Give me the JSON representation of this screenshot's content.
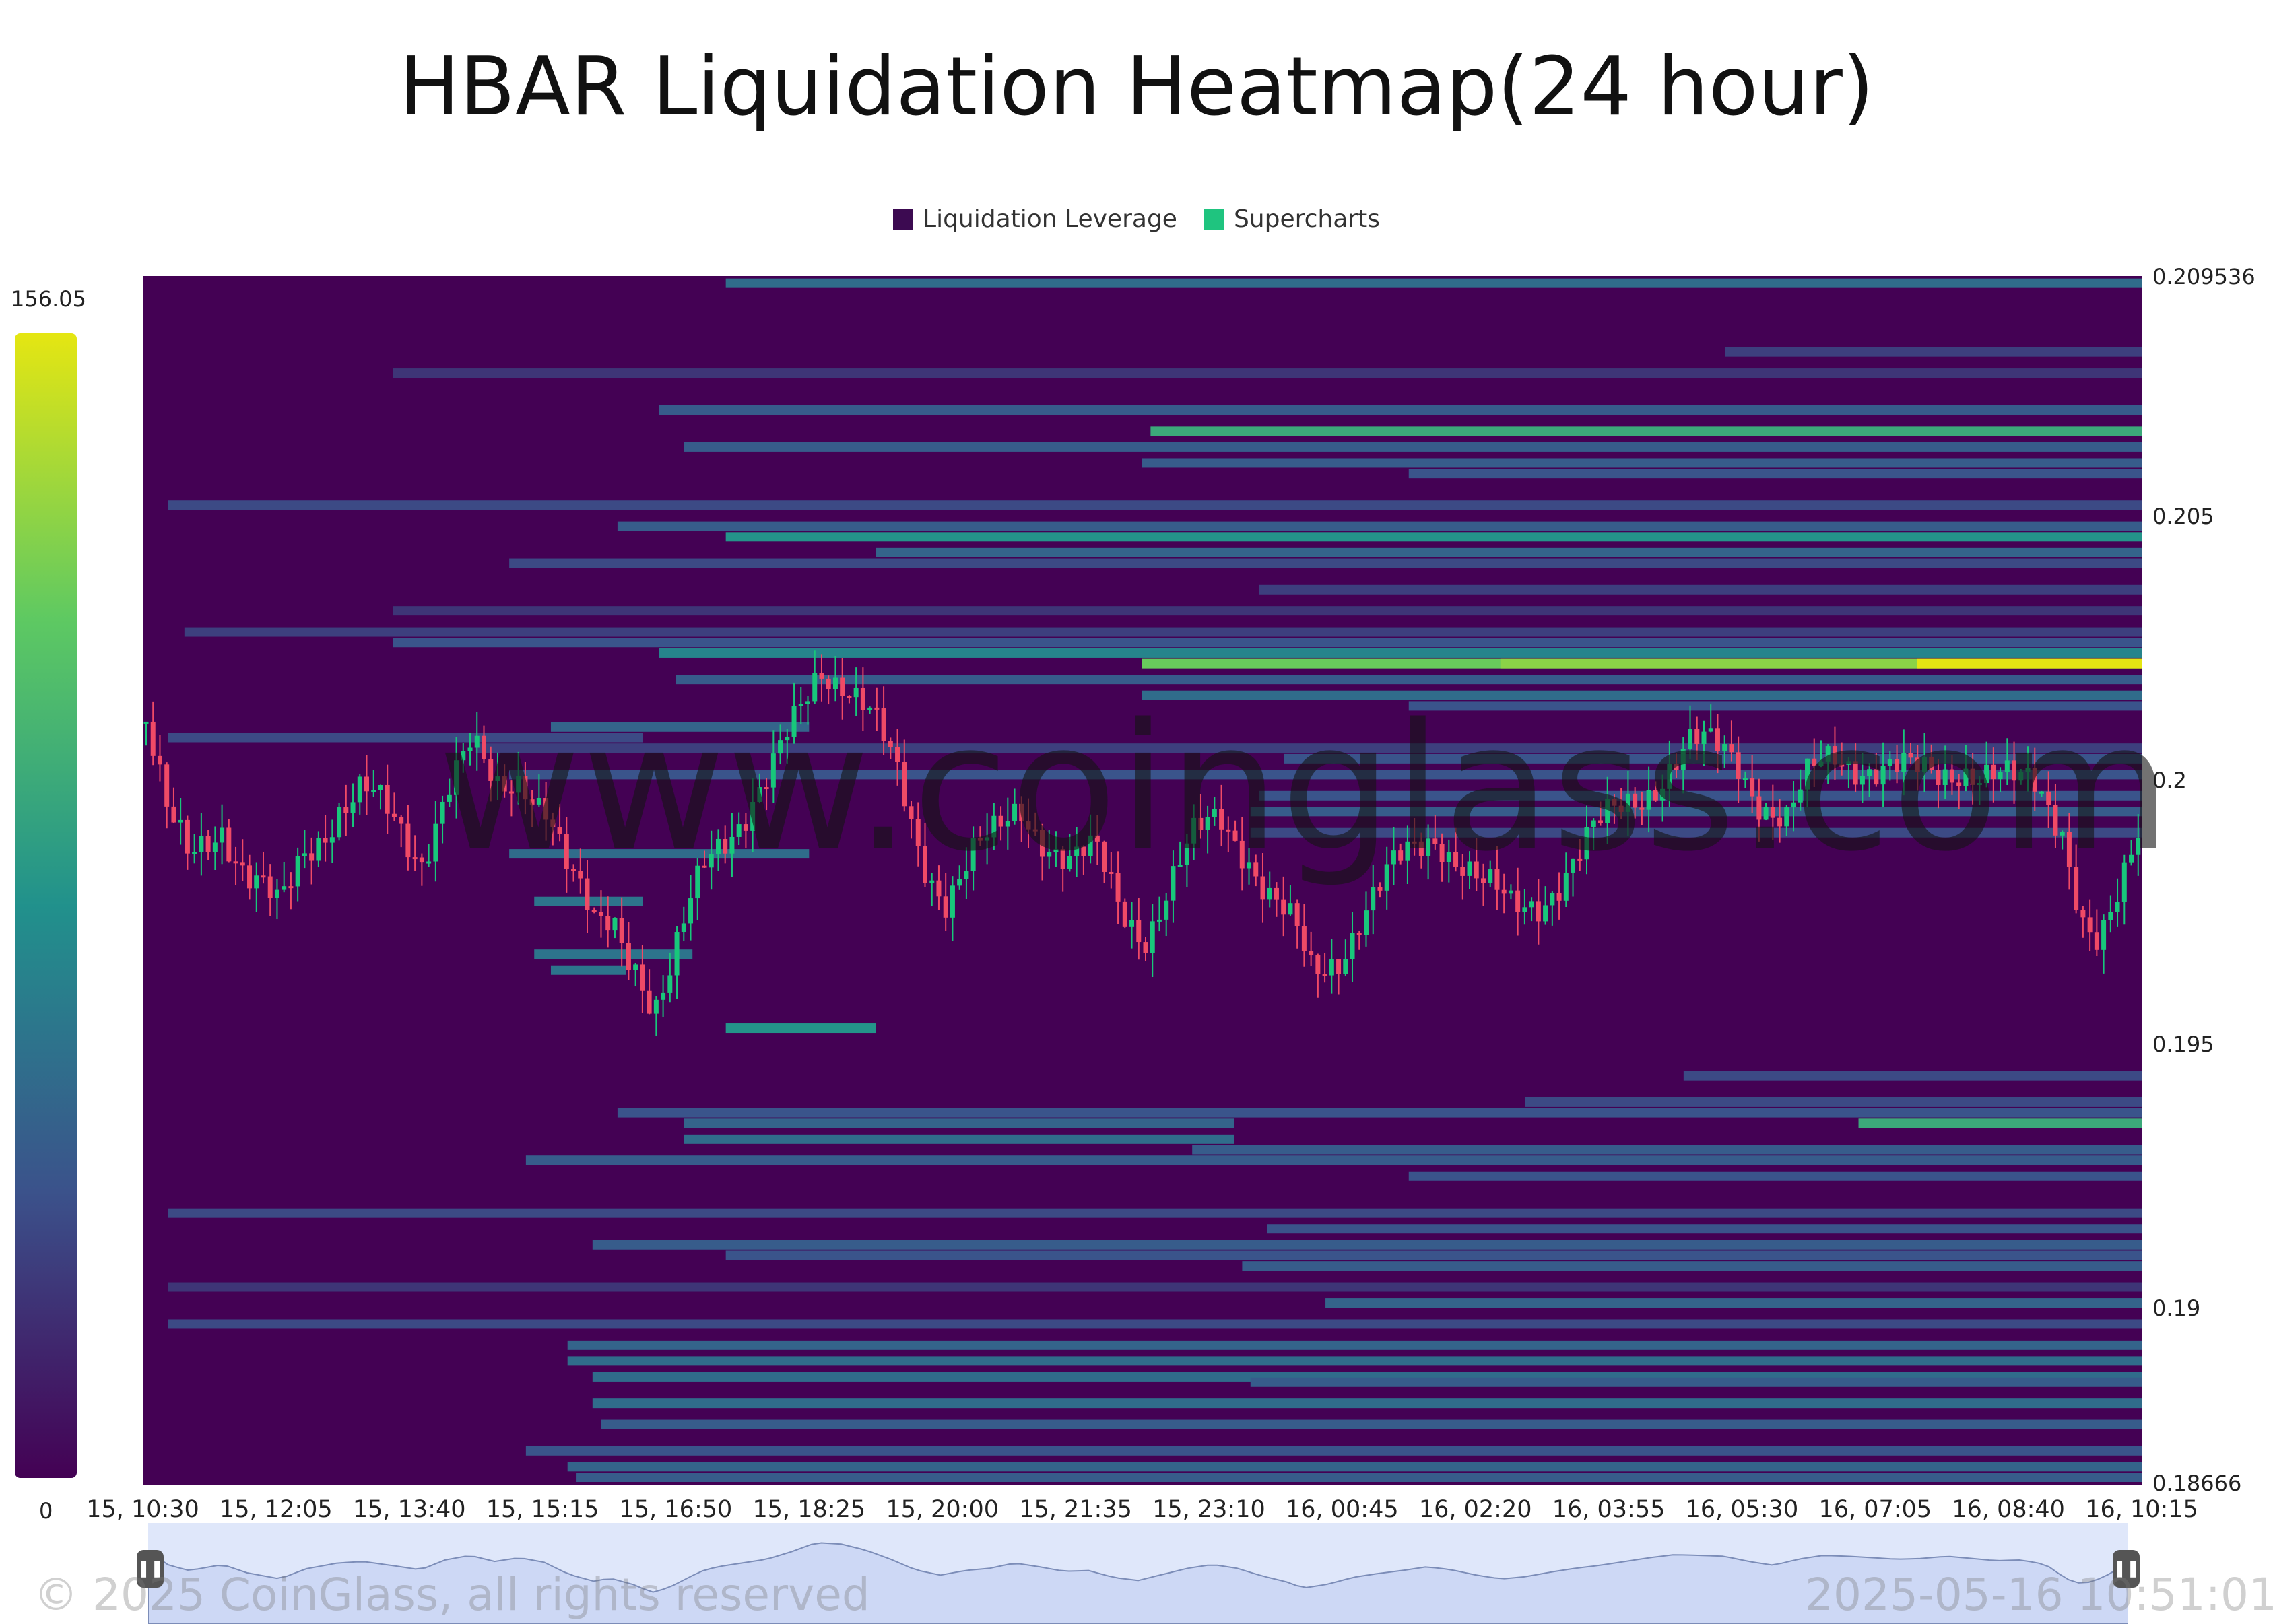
{
  "chart_data": {
    "type": "heatmap",
    "title": "HBAR Liquidation Heatmap(24 hour)",
    "legend": [
      {
        "name": "Liquidation Leverage",
        "color": "#3c0a51"
      },
      {
        "name": "Supercharts",
        "color": "#1fc47f"
      }
    ],
    "legend_position": "top-center",
    "colorbar": {
      "max_label": "156.05",
      "min_label": "0",
      "min": 0,
      "max": 156.05,
      "colormap": "viridis"
    },
    "y_ticks": [
      "0.209536",
      "0.205",
      "0.2",
      "0.195",
      "0.19",
      "0.18666"
    ],
    "ylim": [
      0.18666,
      0.209536
    ],
    "x_ticks": [
      "15, 10:30",
      "15, 12:05",
      "15, 13:40",
      "15, 15:15",
      "15, 16:50",
      "15, 18:25",
      "15, 20:00",
      "15, 21:35",
      "15, 23:10",
      "16, 00:45",
      "16, 02:20",
      "16, 03:55",
      "16, 05:30",
      "16, 07:05",
      "16, 08:40",
      "16, 10:15"
    ],
    "x_hours": [
      0,
      24
    ],
    "liquidation_levels": [
      {
        "price": 0.2094,
        "start_h": 7.0,
        "end_h": 24,
        "value": 55
      },
      {
        "price": 0.2081,
        "start_h": 19.0,
        "end_h": 24,
        "value": 30
      },
      {
        "price": 0.2077,
        "start_h": 3.0,
        "end_h": 24,
        "value": 25
      },
      {
        "price": 0.207,
        "start_h": 6.2,
        "end_h": 24,
        "value": 45
      },
      {
        "price": 0.2066,
        "start_h": 12.1,
        "end_h": 24,
        "value": 95
      },
      {
        "price": 0.2063,
        "start_h": 6.5,
        "end_h": 24,
        "value": 45
      },
      {
        "price": 0.206,
        "start_h": 12.0,
        "end_h": 24,
        "value": 45
      },
      {
        "price": 0.2058,
        "start_h": 15.2,
        "end_h": 24,
        "value": 40
      },
      {
        "price": 0.2052,
        "start_h": 0.3,
        "end_h": 24,
        "value": 35
      },
      {
        "price": 0.2048,
        "start_h": 5.7,
        "end_h": 24,
        "value": 45
      },
      {
        "price": 0.2046,
        "start_h": 7.0,
        "end_h": 24,
        "value": 80
      },
      {
        "price": 0.2043,
        "start_h": 8.8,
        "end_h": 24,
        "value": 50
      },
      {
        "price": 0.2041,
        "start_h": 4.4,
        "end_h": 24,
        "value": 35
      },
      {
        "price": 0.2036,
        "start_h": 13.4,
        "end_h": 24,
        "value": 30
      },
      {
        "price": 0.2032,
        "start_h": 3.0,
        "end_h": 24,
        "value": 25
      },
      {
        "price": 0.2028,
        "start_h": 0.5,
        "end_h": 24,
        "value": 30
      },
      {
        "price": 0.2026,
        "start_h": 3.0,
        "end_h": 24,
        "value": 40
      },
      {
        "price": 0.2024,
        "start_h": 6.2,
        "end_h": 24,
        "value": 70
      },
      {
        "price": 0.2022,
        "start_h": 12.0,
        "end_h": 24,
        "value": 120
      },
      {
        "price": 0.2022,
        "start_h": 16.3,
        "end_h": 24,
        "value": 130
      },
      {
        "price": 0.2022,
        "start_h": 21.3,
        "end_h": 24,
        "value": 156
      },
      {
        "price": 0.2019,
        "start_h": 6.4,
        "end_h": 24,
        "value": 45
      },
      {
        "price": 0.2016,
        "start_h": 12.0,
        "end_h": 24,
        "value": 55
      },
      {
        "price": 0.2014,
        "start_h": 15.2,
        "end_h": 24,
        "value": 40
      },
      {
        "price": 0.201,
        "start_h": 4.9,
        "end_h": 8.0,
        "value": 50
      },
      {
        "price": 0.2008,
        "start_h": 0.3,
        "end_h": 6.0,
        "value": 35
      },
      {
        "price": 0.2006,
        "start_h": 4.0,
        "end_h": 24,
        "value": 30
      },
      {
        "price": 0.2004,
        "start_h": 13.7,
        "end_h": 24,
        "value": 40
      },
      {
        "price": 0.2001,
        "start_h": 4.4,
        "end_h": 24,
        "value": 40
      },
      {
        "price": 0.1997,
        "start_h": 13.4,
        "end_h": 24,
        "value": 40
      },
      {
        "price": 0.1994,
        "start_h": 13.3,
        "end_h": 24,
        "value": 45
      },
      {
        "price": 0.199,
        "start_h": 13.3,
        "end_h": 24,
        "value": 35
      },
      {
        "price": 0.1986,
        "start_h": 4.4,
        "end_h": 8.0,
        "value": 55
      },
      {
        "price": 0.1977,
        "start_h": 4.7,
        "end_h": 6.0,
        "value": 60
      },
      {
        "price": 0.1967,
        "start_h": 4.7,
        "end_h": 6.6,
        "value": 60
      },
      {
        "price": 0.1964,
        "start_h": 4.9,
        "end_h": 5.8,
        "value": 60
      },
      {
        "price": 0.1953,
        "start_h": 7.0,
        "end_h": 8.8,
        "value": 80
      },
      {
        "price": 0.1944,
        "start_h": 18.5,
        "end_h": 24,
        "value": 35
      },
      {
        "price": 0.1939,
        "start_h": 16.6,
        "end_h": 24,
        "value": 35
      },
      {
        "price": 0.1937,
        "start_h": 5.7,
        "end_h": 24,
        "value": 40
      },
      {
        "price": 0.1935,
        "start_h": 6.5,
        "end_h": 13.1,
        "value": 50
      },
      {
        "price": 0.1935,
        "start_h": 20.6,
        "end_h": 24,
        "value": 95
      },
      {
        "price": 0.1932,
        "start_h": 6.5,
        "end_h": 13.1,
        "value": 55
      },
      {
        "price": 0.193,
        "start_h": 12.6,
        "end_h": 24,
        "value": 45
      },
      {
        "price": 0.1928,
        "start_h": 4.6,
        "end_h": 24,
        "value": 45
      },
      {
        "price": 0.1925,
        "start_h": 15.2,
        "end_h": 24,
        "value": 40
      },
      {
        "price": 0.1918,
        "start_h": 0.3,
        "end_h": 24,
        "value": 35
      },
      {
        "price": 0.1915,
        "start_h": 13.5,
        "end_h": 24,
        "value": 40
      },
      {
        "price": 0.1912,
        "start_h": 5.4,
        "end_h": 24,
        "value": 45
      },
      {
        "price": 0.191,
        "start_h": 7.0,
        "end_h": 24,
        "value": 40
      },
      {
        "price": 0.1908,
        "start_h": 13.2,
        "end_h": 24,
        "value": 45
      },
      {
        "price": 0.1904,
        "start_h": 0.3,
        "end_h": 24,
        "value": 25
      },
      {
        "price": 0.1901,
        "start_h": 14.2,
        "end_h": 24,
        "value": 50
      },
      {
        "price": 0.1897,
        "start_h": 0.3,
        "end_h": 24,
        "value": 35
      },
      {
        "price": 0.1893,
        "start_h": 5.1,
        "end_h": 24,
        "value": 50
      },
      {
        "price": 0.189,
        "start_h": 5.1,
        "end_h": 24,
        "value": 55
      },
      {
        "price": 0.1887,
        "start_h": 5.4,
        "end_h": 24,
        "value": 55
      },
      {
        "price": 0.1886,
        "start_h": 13.3,
        "end_h": 24,
        "value": 45
      },
      {
        "price": 0.1882,
        "start_h": 5.4,
        "end_h": 24,
        "value": 55
      },
      {
        "price": 0.1878,
        "start_h": 5.5,
        "end_h": 24,
        "value": 45
      },
      {
        "price": 0.1873,
        "start_h": 4.6,
        "end_h": 24,
        "value": 40
      },
      {
        "price": 0.187,
        "start_h": 5.1,
        "end_h": 24,
        "value": 50
      },
      {
        "price": 0.1868,
        "start_h": 5.2,
        "end_h": 24,
        "value": 45
      }
    ],
    "price_path": [
      [
        0.0,
        0.2011
      ],
      [
        0.25,
        0.1992
      ],
      [
        0.5,
        0.1985
      ],
      [
        0.9,
        0.1993
      ],
      [
        1.2,
        0.1982
      ],
      [
        1.6,
        0.1974
      ],
      [
        1.9,
        0.1987
      ],
      [
        2.3,
        0.1995
      ],
      [
        2.6,
        0.1997
      ],
      [
        3.0,
        0.1991
      ],
      [
        3.3,
        0.1986
      ],
      [
        3.6,
        0.1999
      ],
      [
        3.9,
        0.2005
      ],
      [
        4.2,
        0.1997
      ],
      [
        4.5,
        0.2002
      ],
      [
        4.8,
        0.1996
      ],
      [
        5.1,
        0.198
      ],
      [
        5.4,
        0.1971
      ],
      [
        5.6,
        0.1975
      ],
      [
        5.9,
        0.1966
      ],
      [
        6.1,
        0.1956
      ],
      [
        6.3,
        0.1962
      ],
      [
        6.5,
        0.1973
      ],
      [
        6.7,
        0.1984
      ],
      [
        6.9,
        0.199
      ],
      [
        7.2,
        0.1995
      ],
      [
        7.5,
        0.2
      ],
      [
        7.8,
        0.201
      ],
      [
        8.1,
        0.2022
      ],
      [
        8.4,
        0.202
      ],
      [
        8.7,
        0.2012
      ],
      [
        9.0,
        0.2
      ],
      [
        9.3,
        0.1986
      ],
      [
        9.6,
        0.1979
      ],
      [
        9.9,
        0.1985
      ],
      [
        10.2,
        0.1988
      ],
      [
        10.5,
        0.1995
      ],
      [
        10.8,
        0.199
      ],
      [
        11.1,
        0.1984
      ],
      [
        11.4,
        0.1985
      ],
      [
        11.7,
        0.1976
      ],
      [
        12.0,
        0.1972
      ],
      [
        12.3,
        0.198
      ],
      [
        12.6,
        0.1988
      ],
      [
        12.9,
        0.1993
      ],
      [
        13.2,
        0.1988
      ],
      [
        13.5,
        0.1978
      ],
      [
        13.8,
        0.197
      ],
      [
        14.0,
        0.1962
      ],
      [
        14.3,
        0.1967
      ],
      [
        14.6,
        0.1976
      ],
      [
        14.9,
        0.1981
      ],
      [
        15.2,
        0.1985
      ],
      [
        15.5,
        0.199
      ],
      [
        15.8,
        0.1986
      ],
      [
        16.1,
        0.1979
      ],
      [
        16.4,
        0.1974
      ],
      [
        16.7,
        0.1977
      ],
      [
        17.0,
        0.1983
      ],
      [
        17.3,
        0.1988
      ],
      [
        17.6,
        0.1992
      ],
      [
        17.9,
        0.1997
      ],
      [
        18.2,
        0.2002
      ],
      [
        18.5,
        0.2006
      ],
      [
        18.8,
        0.2005
      ],
      [
        19.1,
        0.2004
      ],
      [
        19.4,
        0.1997
      ],
      [
        19.7,
        0.1992
      ],
      [
        20.0,
        0.2
      ],
      [
        20.3,
        0.2005
      ],
      [
        20.6,
        0.2004
      ],
      [
        20.9,
        0.2002
      ],
      [
        21.2,
        0.2
      ],
      [
        21.5,
        0.2001
      ],
      [
        21.8,
        0.2004
      ],
      [
        22.1,
        0.2001
      ],
      [
        22.4,
        0.1998
      ],
      [
        22.7,
        0.1999
      ],
      [
        23.0,
        0.1993
      ],
      [
        23.25,
        0.1974
      ],
      [
        23.45,
        0.1967
      ],
      [
        23.7,
        0.1976
      ],
      [
        23.9,
        0.1989
      ],
      [
        24.0,
        0.1992
      ]
    ]
  },
  "watermark": "www.coinglass.com",
  "footer": {
    "copyright": "© 2025 CoinGlass, all rights reserved",
    "timestamp": "2025-05-16 10:51:01"
  },
  "navigator": {
    "handle_left_icon": "pause-icon",
    "handle_right_icon": "pause-icon"
  }
}
